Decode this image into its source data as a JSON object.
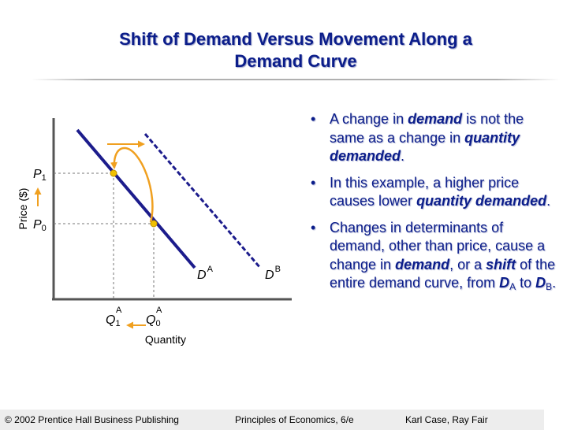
{
  "title": {
    "line1": "Shift of Demand Versus Movement Along a",
    "line2": "Demand Curve"
  },
  "diagram": {
    "y_axis_label": "Price ($)",
    "x_axis_label": "Quantity",
    "p1": "P",
    "p1_sub": "1",
    "p0": "P",
    "p0_sub": "0",
    "q1": "Q",
    "q1_sub": "1",
    "q1_sup": "A",
    "q0": "Q",
    "q0_sub": "0",
    "q0_sup": "A",
    "da": "D",
    "da_sup": "A",
    "db": "D",
    "db_sup": "B",
    "colors": {
      "curve": "#1c1c8c",
      "arrow": "#f0a020",
      "point": "#f0c000",
      "axis": "#555555"
    }
  },
  "bullets": [
    {
      "marker": "•",
      "t1": "A change in ",
      "b1": "demand",
      "t2": " is not the same as a change in ",
      "b2": "quantity demanded",
      "t3": "."
    },
    {
      "marker": "•",
      "t1": "In this example, a higher price causes lower ",
      "b1": "quantity demanded",
      "t2": "."
    },
    {
      "marker": "•",
      "t1": "Changes in determinants of demand, other than price, cause a change in ",
      "b1": "demand",
      "t2": ", or a ",
      "b2": "shift",
      "t3": " of the entire demand curve, from ",
      "b3": "D",
      "s3": "A",
      "t4": " to ",
      "b4": "D",
      "s4": "B",
      "t5": "."
    }
  ],
  "footer": {
    "left": "© 2002 Prentice Hall Business Publishing",
    "middle": "Principles of Economics, 6/e",
    "right": "Karl Case, Ray Fair"
  }
}
